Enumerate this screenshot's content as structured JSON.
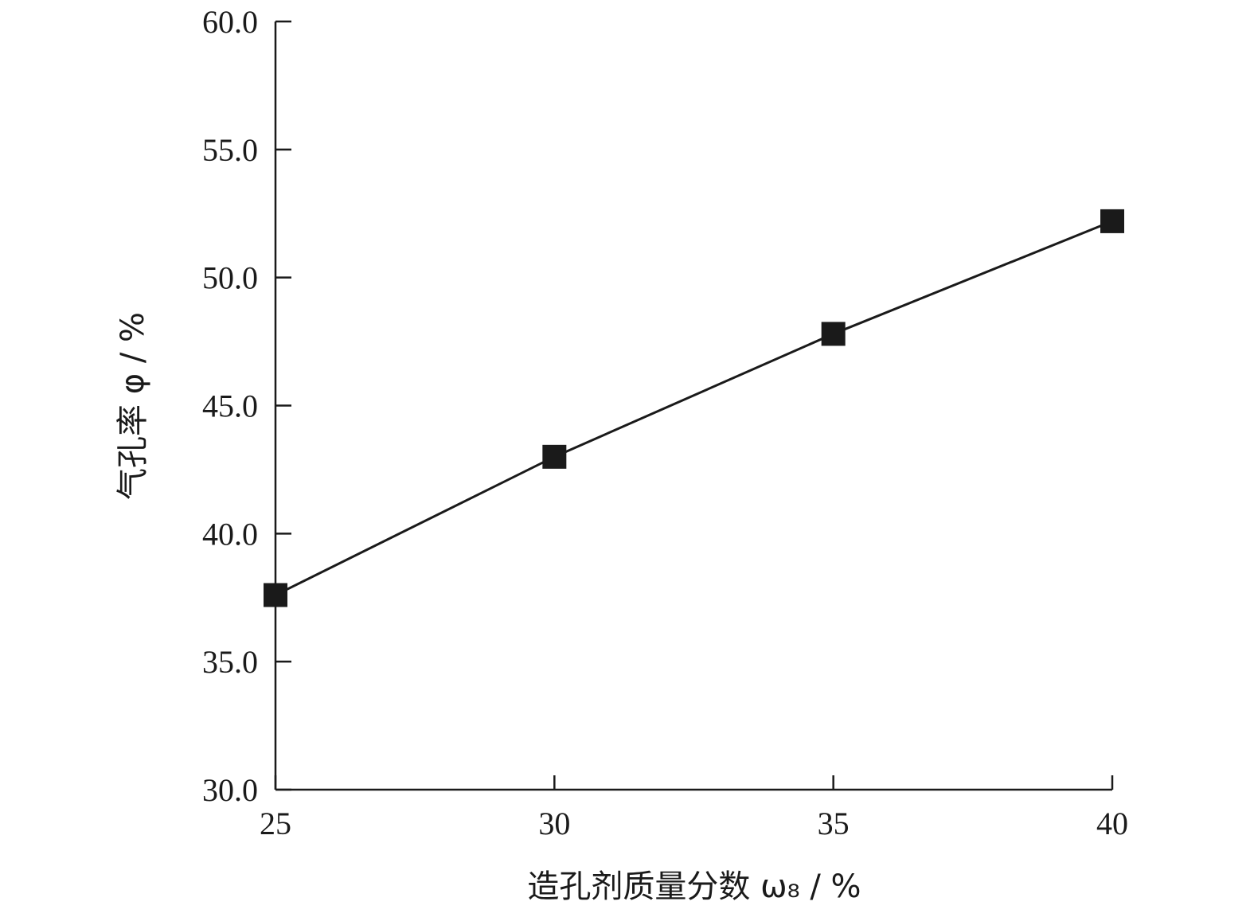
{
  "chart_data": {
    "type": "line",
    "xlabel": "造孔剂质量分数 ω₈ / %",
    "ylabel": "气孔率 φ / %",
    "xlim": [
      25,
      40
    ],
    "ylim": [
      30.0,
      60.0
    ],
    "x_ticks": [
      "25",
      "30",
      "35",
      "40"
    ],
    "y_ticks": [
      "30.0",
      "35.0",
      "40.0",
      "45.0",
      "50.0",
      "55.0",
      "60.0"
    ],
    "x": [
      25,
      30,
      35,
      40
    ],
    "series": [
      {
        "values": [
          37.6,
          43.0,
          47.8,
          52.2
        ],
        "marker": "square",
        "color": "#1a1a1a"
      }
    ],
    "grid": false
  }
}
